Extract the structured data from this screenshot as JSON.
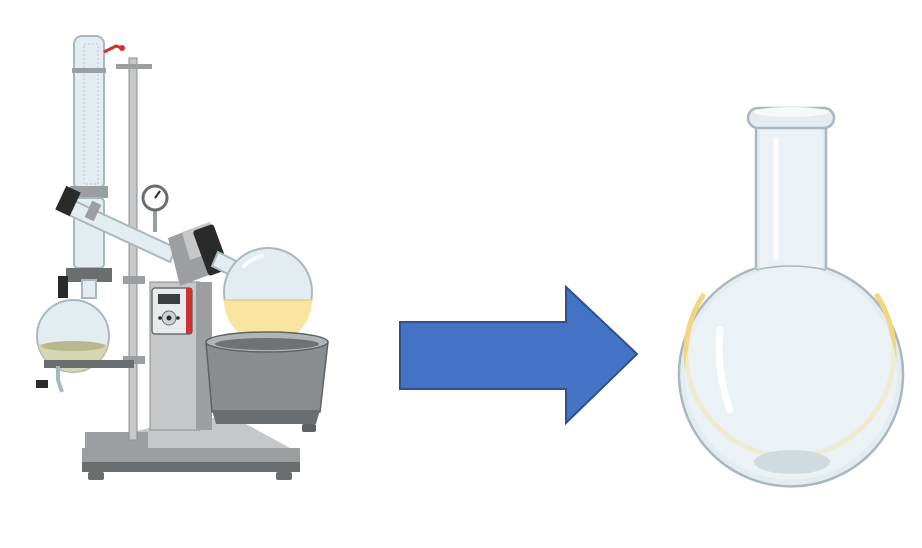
{
  "colors": {
    "background": "#ffffff",
    "arrow_fill": "#4472C4",
    "arrow_stroke": "#2F528F",
    "glass_fill": "#E3EDF1",
    "glass_stroke": "#A9B8BF",
    "liquid_yellow": "#F9E4A0",
    "residue_yellow": "#F2D77E",
    "steel_light": "#C5C7C9",
    "steel_mid": "#9C9FA2",
    "steel_dark": "#6B6E71",
    "bath_grey": "#8A8D90",
    "panel_red": "#D0312D",
    "clamp_black": "#2A2A2A",
    "condensate_green": "#D6D6B0"
  },
  "items": [
    {
      "id": "rotary-evaporator",
      "icon": "rotary-evaporator-icon"
    },
    {
      "id": "process-arrow",
      "icon": "right-arrow-icon"
    },
    {
      "id": "round-bottom-flask",
      "icon": "round-bottom-flask-icon"
    }
  ]
}
